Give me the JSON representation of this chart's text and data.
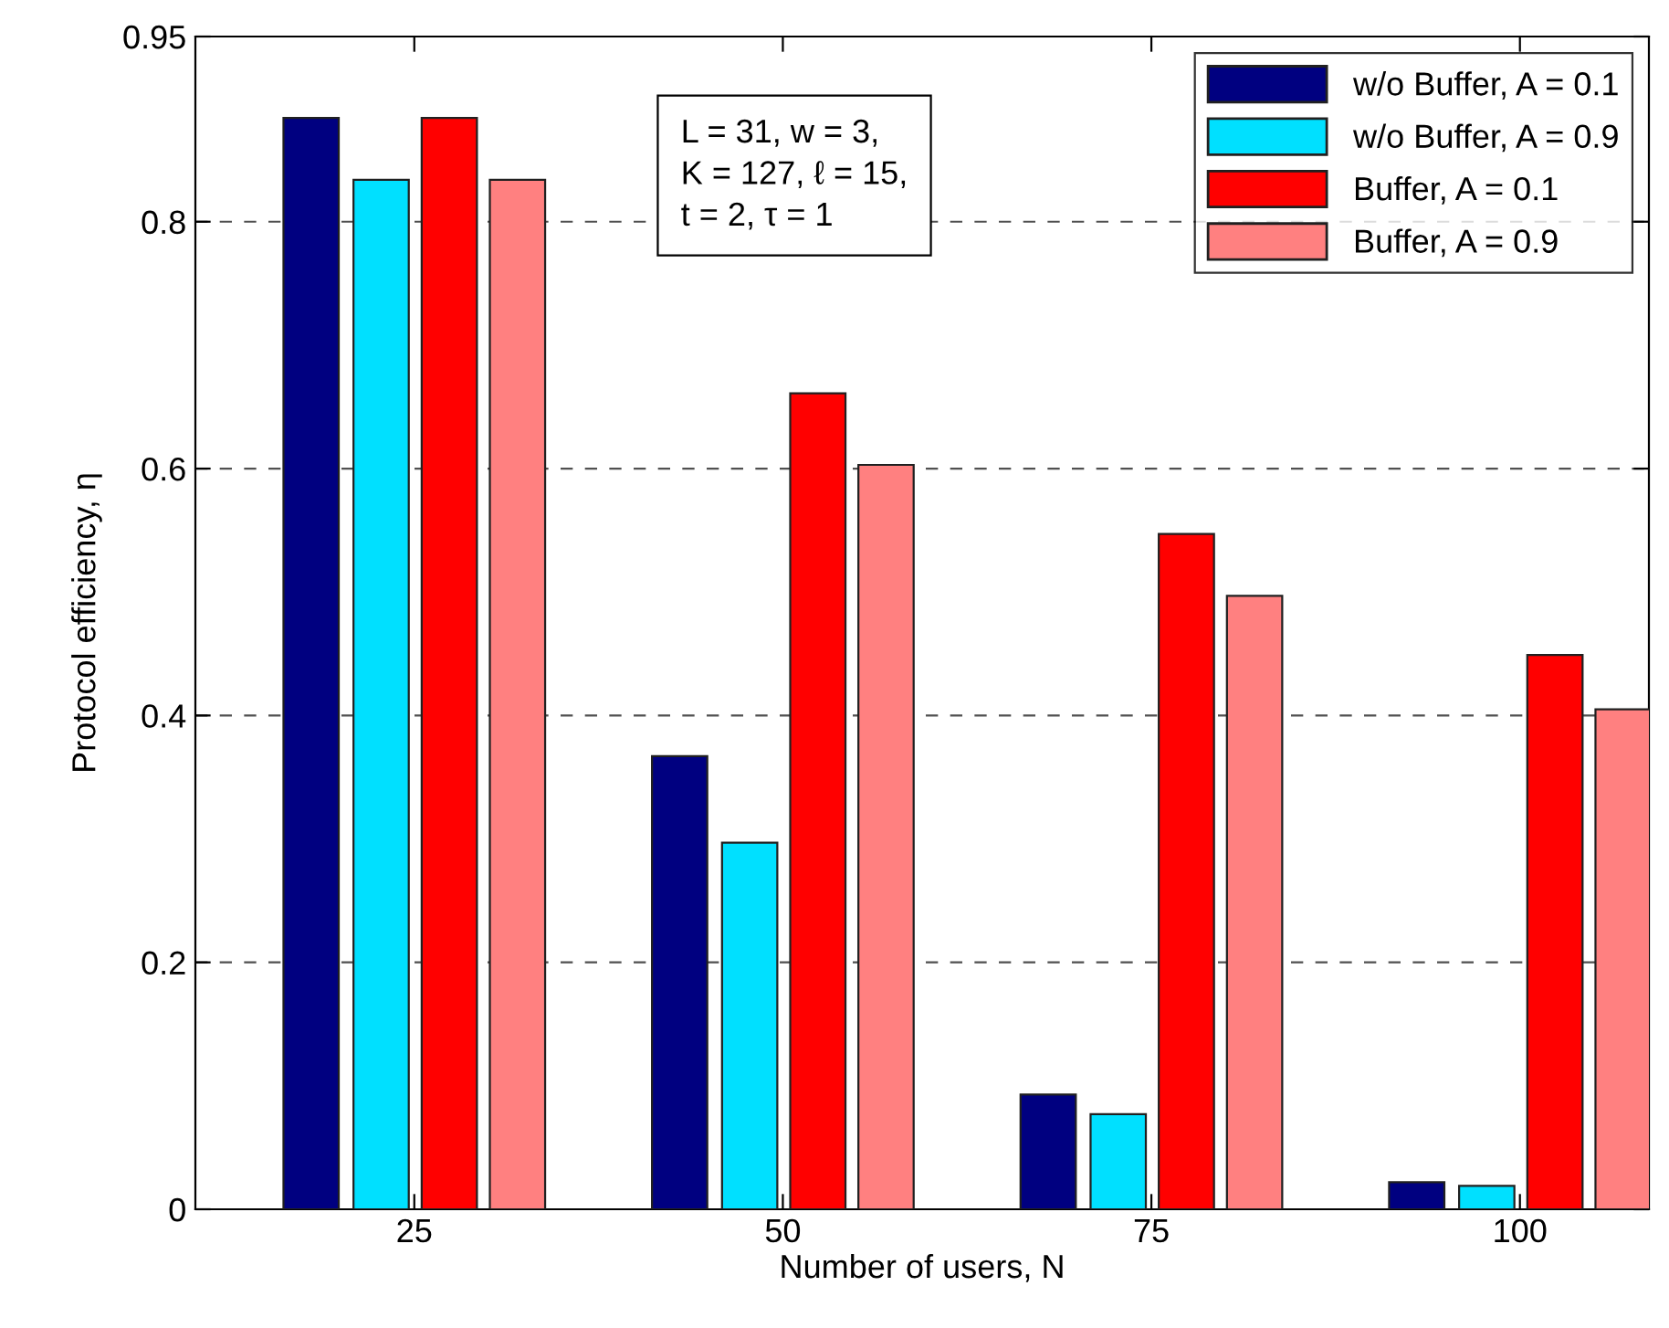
{
  "chart_data": {
    "type": "bar",
    "xlabel": "Number of users, N",
    "ylabel": "Protocol efficiency, η",
    "categories": [
      "25",
      "50",
      "75",
      "100"
    ],
    "series": [
      {
        "name": "w/o Buffer, A = 0.1",
        "color": "#000080",
        "values": [
          0.884,
          0.367,
          0.093,
          0.022
        ]
      },
      {
        "name": "w/o Buffer, A = 0.9",
        "color": "#00e0ff",
        "values": [
          0.834,
          0.297,
          0.077,
          0.019
        ]
      },
      {
        "name": "Buffer, A = 0.1",
        "color": "#ff0000",
        "values": [
          0.884,
          0.661,
          0.547,
          0.449
        ]
      },
      {
        "name": "Buffer, A = 0.9",
        "color": "#ff8080",
        "values": [
          0.834,
          0.603,
          0.497,
          0.405
        ]
      }
    ],
    "ylim": [
      0,
      0.95
    ],
    "yticks": [
      0,
      0.2,
      0.4,
      0.6,
      0.8,
      0.95
    ],
    "grid": "y",
    "legend": "top right",
    "annotations": [
      "L = 31, w = 3,\nK = 127, ℓ = 15,\nt = 2, τ = 1"
    ]
  }
}
